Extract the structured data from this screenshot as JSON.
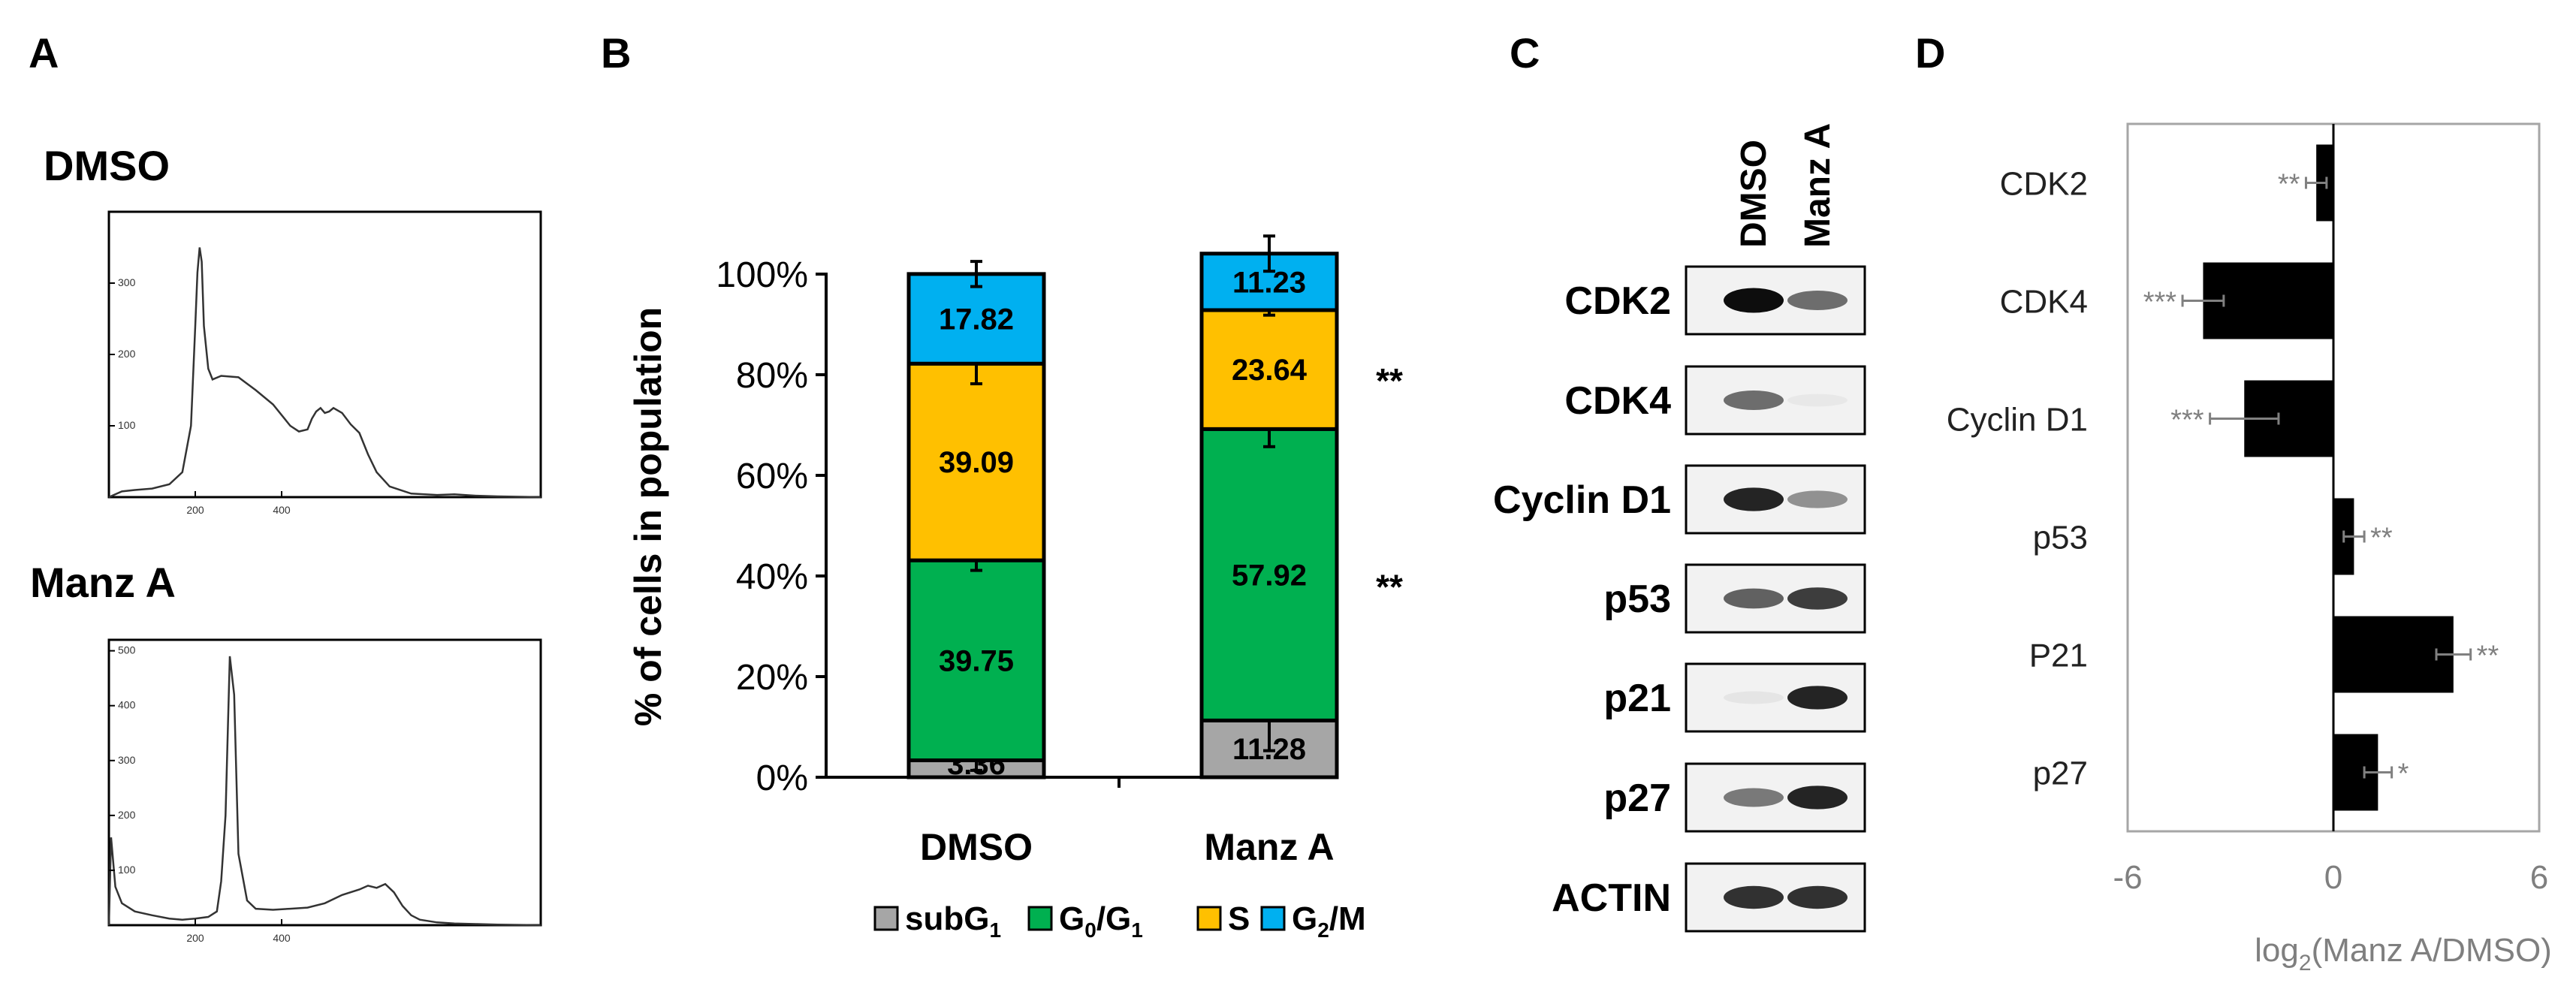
{
  "figure": {
    "panel_letters": [
      "A",
      "B",
      "C",
      "D"
    ]
  },
  "chart_data": [
    {
      "panel": "A",
      "type": "line",
      "subtitle": "DMSO",
      "yticks": [
        "300",
        "200",
        "100"
      ],
      "xticks": [
        "200",
        "400"
      ],
      "xlim": [
        0,
        1000
      ],
      "ylim": [
        0,
        400
      ],
      "series": [
        {
          "x": [
            0,
            30,
            60,
            100,
            140,
            170,
            190,
            200,
            205,
            210,
            215,
            220,
            230,
            240,
            260,
            300,
            340,
            380,
            420,
            440,
            460,
            470,
            480,
            490,
            500,
            510,
            520,
            540,
            560,
            580,
            600,
            620,
            650,
            700,
            760,
            800,
            850,
            900,
            1000
          ],
          "y": [
            0,
            8,
            10,
            12,
            18,
            35,
            100,
            240,
            315,
            350,
            330,
            240,
            180,
            165,
            170,
            168,
            150,
            130,
            100,
            92,
            95,
            110,
            120,
            125,
            118,
            120,
            125,
            118,
            102,
            90,
            60,
            35,
            15,
            5,
            3,
            4,
            2,
            1,
            0
          ]
        }
      ]
    },
    {
      "panel": "A",
      "type": "line",
      "subtitle": "Manz A",
      "yticks": [
        "500",
        "400",
        "300",
        "200",
        "100"
      ],
      "xticks": [
        "200",
        "400"
      ],
      "xlim": [
        0,
        1000
      ],
      "ylim": [
        0,
        520
      ],
      "series": [
        {
          "x": [
            0,
            5,
            15,
            30,
            60,
            100,
            140,
            170,
            200,
            230,
            250,
            260,
            270,
            280,
            290,
            300,
            320,
            340,
            380,
            420,
            460,
            500,
            540,
            580,
            600,
            620,
            640,
            660,
            680,
            700,
            720,
            760,
            800,
            850,
            900,
            1000
          ],
          "y": [
            0,
            160,
            70,
            40,
            25,
            18,
            12,
            10,
            12,
            15,
            25,
            80,
            200,
            490,
            420,
            130,
            45,
            30,
            28,
            30,
            32,
            40,
            55,
            65,
            72,
            68,
            75,
            60,
            35,
            18,
            10,
            5,
            3,
            2,
            1,
            0
          ]
        }
      ]
    },
    {
      "panel": "B",
      "type": "bar",
      "stacked": true,
      "categories": [
        "DMSO",
        "Manz A"
      ],
      "ylabel": "% of cells in population",
      "yticks": [
        "0%",
        "20%",
        "40%",
        "60%",
        "80%",
        "100%"
      ],
      "ylim": [
        0,
        100
      ],
      "legend_position": "bottom",
      "series": [
        {
          "name": "subG1",
          "legend_main": "subG",
          "legend_sub": "1",
          "color": "#a6a6a6",
          "values": [
            3.36,
            11.28
          ],
          "labels": [
            "3.36",
            "11.28"
          ],
          "errors": [
            2,
            6
          ]
        },
        {
          "name": "G0/G1",
          "legend_main": "G",
          "legend_sub": "0",
          "legend_main2": "/G",
          "legend_sub2": "1",
          "color": "#00b050",
          "values": [
            39.75,
            57.92
          ],
          "labels": [
            "39.75",
            "57.92"
          ],
          "errors": [
            2,
            3.5
          ]
        },
        {
          "name": "S",
          "legend_main": "S",
          "color": "#ffc000",
          "values": [
            39.09,
            23.64
          ],
          "labels": [
            "39.09",
            "23.64"
          ],
          "errors": [
            4,
            1
          ]
        },
        {
          "name": "G2/M",
          "legend_main": "G",
          "legend_sub": "2",
          "legend_main2": "/M",
          "color": "#00b0f0",
          "values": [
            17.82,
            11.23
          ],
          "labels": [
            "17.82",
            "11.23"
          ],
          "errors": [
            2.5,
            3.5
          ]
        }
      ],
      "annotations": [
        {
          "text": "**",
          "category": "Manz A",
          "at_value": 80
        },
        {
          "text": "**",
          "category": "Manz A",
          "at_value": 39
        }
      ]
    },
    {
      "panel": "D",
      "type": "bar",
      "orientation": "horizontal",
      "categories": [
        "CDK2",
        "CDK4",
        "Cyclin D1",
        "p53",
        "P21",
        "p27"
      ],
      "values": [
        -0.5,
        -3.8,
        -2.6,
        0.6,
        3.5,
        1.3
      ],
      "errors": [
        0.3,
        0.6,
        1.0,
        0.3,
        0.5,
        0.4
      ],
      "significance": [
        "**",
        "***",
        "***",
        "**",
        "**",
        "*"
      ],
      "xlabel_main": "log",
      "xlabel_sub": "2",
      "xlabel_rest": "(Manz A/DMSO)",
      "xticks": [
        "-6",
        "0",
        "6"
      ],
      "xlim": [
        -6,
        6
      ]
    }
  ],
  "western_blot": {
    "panel": "C",
    "lanes": [
      "DMSO",
      "Manz A"
    ],
    "rows": [
      {
        "label": "CDK2",
        "intensity": [
          0.95,
          0.55
        ]
      },
      {
        "label": "CDK4",
        "intensity": [
          0.55,
          0.04
        ]
      },
      {
        "label": "Cyclin D1",
        "intensity": [
          0.85,
          0.4
        ]
      },
      {
        "label": "p53",
        "intensity": [
          0.6,
          0.75
        ]
      },
      {
        "label": "p21",
        "intensity": [
          0.05,
          0.85
        ]
      },
      {
        "label": "p27",
        "intensity": [
          0.5,
          0.85
        ]
      },
      {
        "label": "ACTIN",
        "intensity": [
          0.8,
          0.8
        ]
      }
    ]
  }
}
